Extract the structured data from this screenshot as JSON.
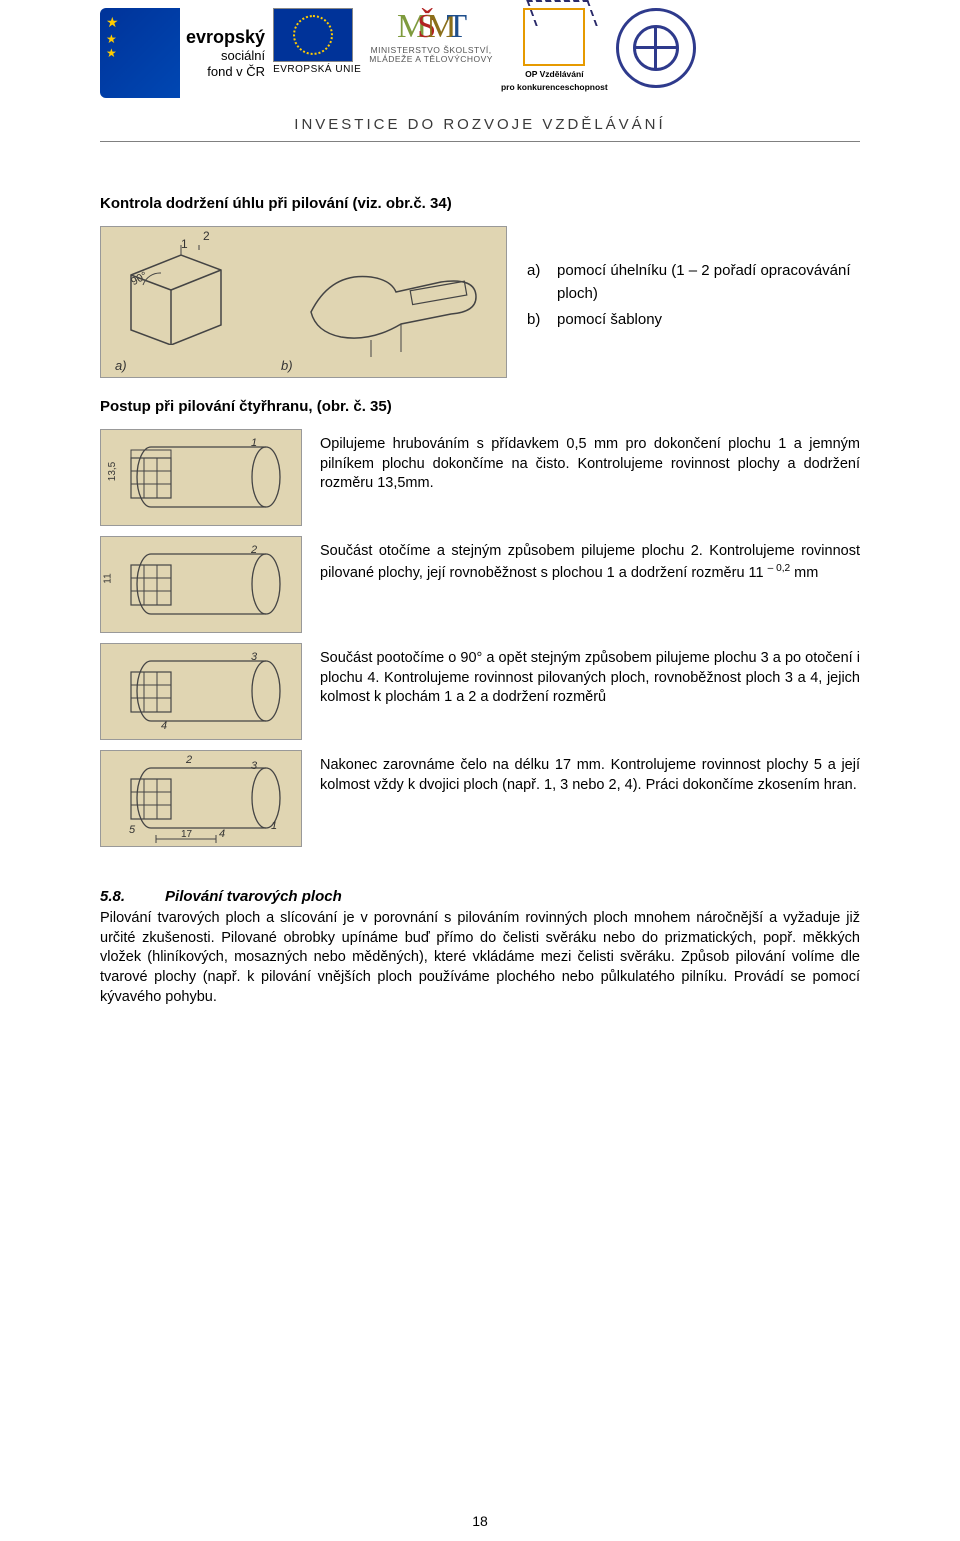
{
  "header": {
    "esf": {
      "line1": "evropský",
      "line2": "sociální",
      "line3": "fond v ČR",
      "bold_line": "evropský"
    },
    "eu_label": "EVROPSKÁ UNIE",
    "msmt": {
      "sub1": "MINISTERSTVO ŠKOLSTVÍ,",
      "sub2": "MLÁDEŽE A TĚLOVÝCHOVY"
    },
    "opvk": {
      "sub1": "OP Vzdělávání",
      "sub2": "pro konkurenceschopnost"
    },
    "invest": "INVESTICE DO ROZVOJE VZDĚLÁVÁNÍ"
  },
  "title1": "Kontrola dodržení úhlu při pilování (viz. obr.č. 34)",
  "fig_top": {
    "bg": "#e0d5b2",
    "label_a": "a)",
    "label_b": "b)",
    "num1": "1",
    "num2": "2",
    "angle": "90°"
  },
  "list_ab": {
    "a_marker": "a)",
    "a_text": "pomocí úhelníku (1 – 2 pořadí opracovávání ploch)",
    "b_marker": "b)",
    "b_text": "pomocí šablony"
  },
  "title2": "Postup při pilování čtyřhranu, (obr. č. 35)",
  "steps": [
    {
      "left_dim": "13,5",
      "fig_nums": [
        "1"
      ],
      "text": "Opilujeme hrubováním s přídavkem 0,5 mm pro dokončení plochu 1 a jemným pilníkem plochu dokončíme na čisto. Kontrolujeme rovinnost plochy a dodržení rozměru 13,5mm."
    },
    {
      "left_dim": "11",
      "fig_nums": [
        "2"
      ],
      "text_html": "Součást otočíme a stejným způsobem pilujeme plochu 2. Kontrolujeme rovinnost pilované plochy, její rovnoběžnost s plochou 1 a dodržení rozměru 11 <span class='sup'>– 0,2</span> mm"
    },
    {
      "left_dim": "",
      "fig_nums": [
        "3",
        "4"
      ],
      "text": "Součást pootočíme o 90° a opět stejným způsobem pilujeme plochu 3 a po otočení i plochu 4. Kontrolujeme rovinnost pilovaných ploch, rovnoběžnost ploch 3 a 4, jejich kolmost k plochám 1 a 2 a dodržení rozměrů"
    },
    {
      "left_dim": "",
      "fig_nums": [
        "2",
        "3",
        "1",
        "5",
        "4"
      ],
      "bottom_dim": "17",
      "text": "Nakonec zarovnáme čelo na délku 17 mm. Kontrolujeme rovinnost plochy 5 a její kolmost vždy k dvojici ploch (např. 1, 3 nebo 2, 4). Práci dokončíme zkosením hran."
    }
  ],
  "section58": {
    "num": "5.8.",
    "title": "Pilování tvarových ploch",
    "body": "Pilování tvarových ploch a slícování je v porovnání s pilováním rovinných ploch mnohem náročnější a vyžaduje již určité zkušenosti. Pilované obrobky upínáme buď přímo do čelisti svěráku nebo do prizmatických, popř. měkkých vložek (hliníkových, mosazných nebo měděných), které vkládáme mezi čelisti svěráku. Způsob pilování volíme dle tvarové plochy (např. k pilování vnějších ploch používáme plochého nebo půlkulatého pilníku. Provádí se pomocí kývavého pohybu."
  },
  "page_number": "18",
  "colors": {
    "fig_bg": "#e0d5b2",
    "line": "#444444",
    "eu_blue": "#003399",
    "eu_gold": "#ffcc00",
    "op_orange": "#e69a00",
    "gear_blue": "#2e3a8c"
  }
}
